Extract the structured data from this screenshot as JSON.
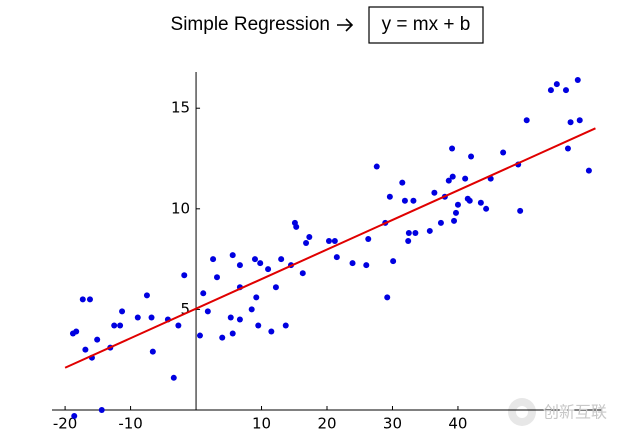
{
  "chart_data": {
    "type": "scatter",
    "title": "Simple Regression",
    "equation": "y = mx + b",
    "x": [
      -18.6,
      -18.8,
      -18.3,
      -17.3,
      -16.2,
      -16.9,
      -15.9,
      -15.1,
      -14.4,
      -13.1,
      -12.5,
      -11.6,
      -11.3,
      -8.9,
      -7.5,
      -6.8,
      -6.6,
      -4.3,
      -3.4,
      -2.7,
      -1.8,
      0.6,
      1.1,
      1.8,
      2.6,
      3.2,
      4.0,
      5.3,
      5.6,
      5.6,
      6.7,
      6.7,
      6.7,
      8.5,
      9.2,
      9.0,
      9.8,
      9.5,
      11.0,
      11.5,
      12.2,
      13.0,
      13.7,
      14.5,
      15.1,
      15.3,
      16.3,
      16.8,
      17.3,
      20.3,
      21.2,
      21.5,
      23.9,
      26.0,
      26.3,
      27.6,
      28.9,
      29.2,
      29.6,
      30.1,
      31.5,
      31.9,
      32.5,
      32.4,
      33.2,
      33.5,
      35.7,
      36.4,
      37.4,
      38.0,
      38.6,
      39.1,
      39.2,
      39.4,
      39.7,
      40.0,
      41.1,
      41.5,
      41.8,
      42.0,
      43.5,
      44.3,
      45.0,
      46.9,
      49.2,
      49.5,
      50.5,
      54.2,
      55.1,
      56.5,
      56.8,
      57.2,
      58.3,
      58.6,
      60.0
    ],
    "values": [
      -0.3,
      3.8,
      3.9,
      5.5,
      5.5,
      3.0,
      2.6,
      3.5,
      0,
      3.1,
      4.2,
      4.2,
      4.9,
      4.6,
      5.7,
      4.6,
      2.9,
      4.5,
      1.6,
      4.2,
      6.7,
      3.7,
      5.8,
      4.9,
      7.5,
      6.6,
      3.6,
      4.6,
      3.8,
      7.7,
      4.5,
      6.1,
      7.2,
      5.0,
      5.6,
      7.5,
      7.3,
      4.2,
      7.0,
      3.9,
      6.1,
      7.5,
      4.2,
      7.2,
      9.3,
      9.1,
      6.8,
      8.3,
      8.6,
      8.4,
      8.4,
      7.6,
      7.3,
      7.2,
      8.5,
      12.1,
      9.3,
      5.6,
      10.6,
      7.4,
      11.3,
      10.4,
      8.8,
      8.4,
      10.4,
      8.8,
      8.9,
      10.8,
      9.3,
      10.6,
      11.4,
      13.0,
      11.6,
      9.4,
      9.8,
      10.2,
      11.5,
      10.5,
      10.4,
      12.6,
      10.3,
      10.0,
      11.5,
      12.8,
      12.2,
      9.9,
      14.4,
      15.9,
      16.2,
      15.9,
      13.0,
      14.3,
      16.4,
      14.4,
      11.9
    ],
    "color": "#0000e0",
    "fit": {
      "x": [
        -20,
        61
      ],
      "y": [
        2.1,
        14.0
      ],
      "color": "#e00000"
    },
    "xlim": [
      -22,
      62
    ],
    "ylim": [
      0,
      16.8
    ],
    "xticks": [
      -20,
      -10,
      10,
      20,
      30,
      40
    ],
    "yticks": [
      5,
      10,
      15
    ],
    "watermark": "创新互联"
  }
}
